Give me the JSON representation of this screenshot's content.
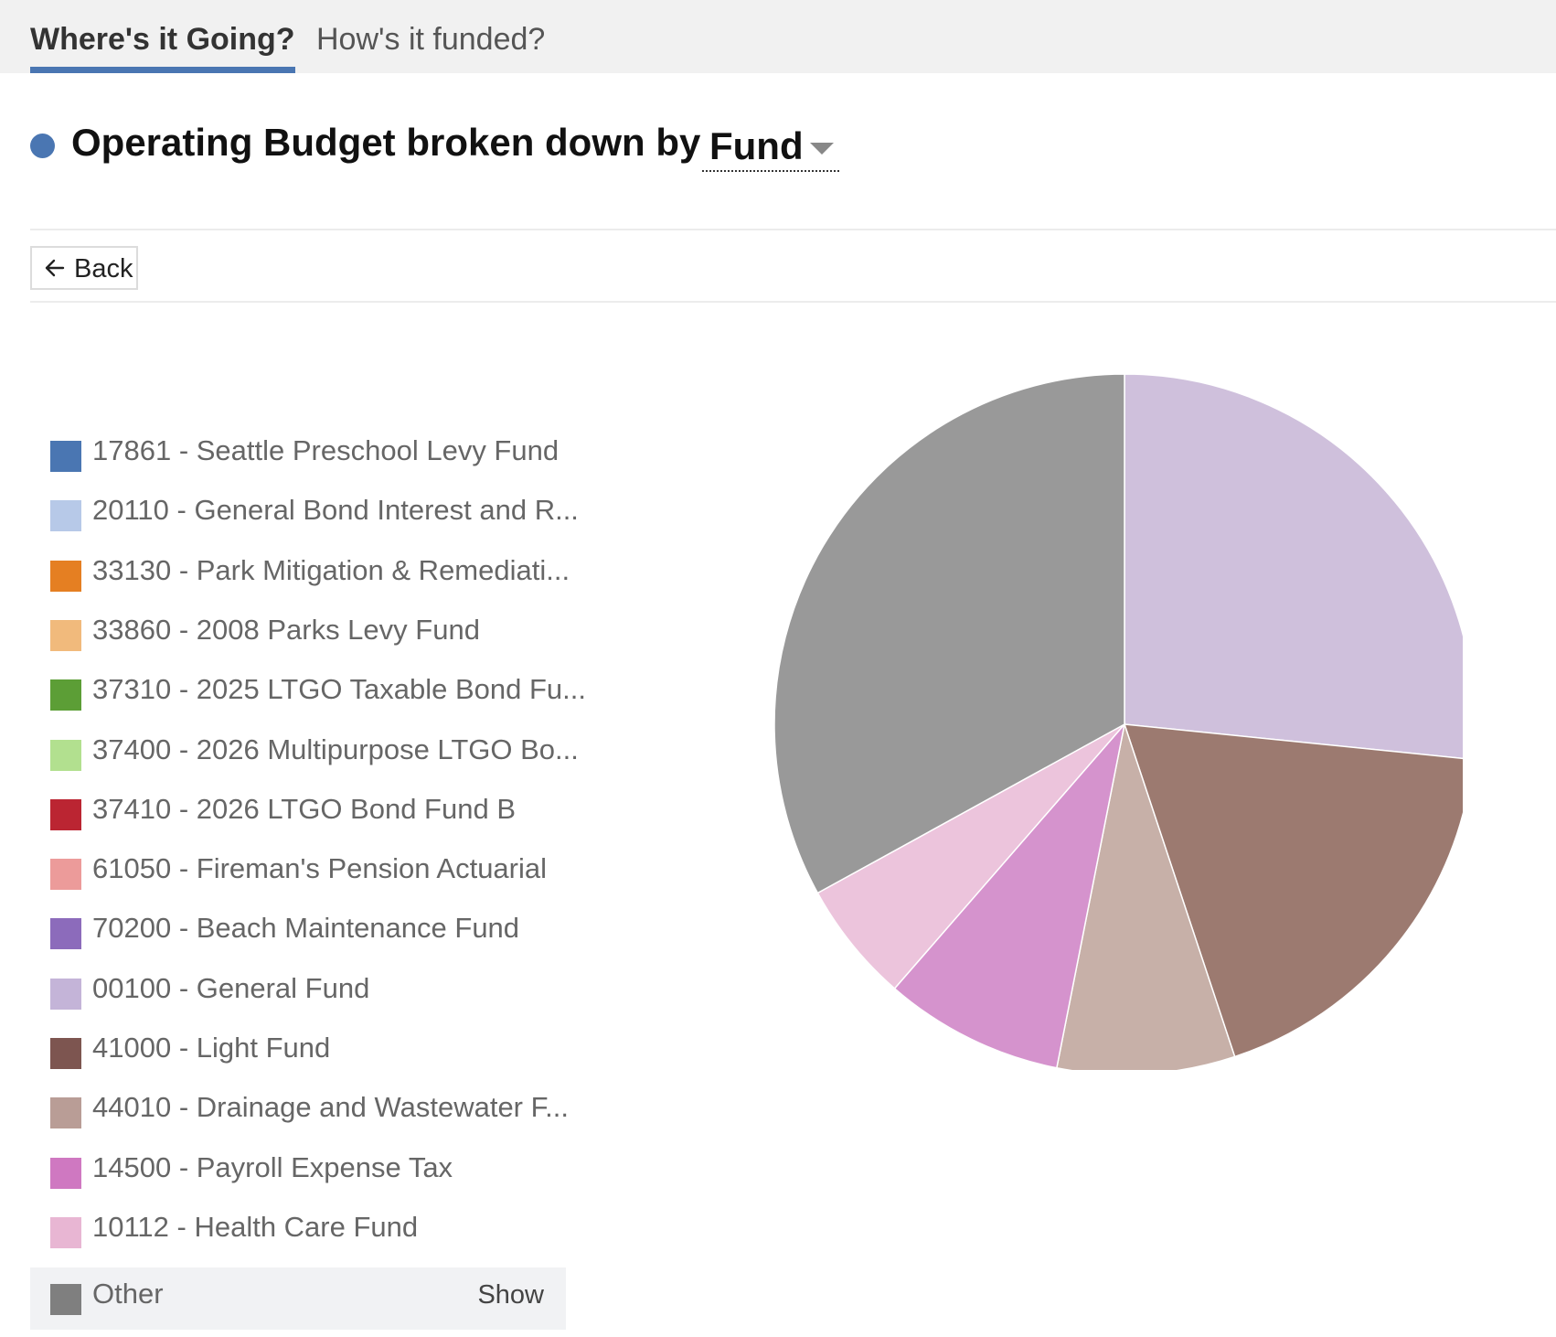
{
  "tabs": [
    {
      "label": "Where's it Going?",
      "active": true
    },
    {
      "label": "How's it funded?",
      "active": false
    }
  ],
  "header": {
    "title": "Operating Budget broken down by",
    "dropdown_value": "Fund",
    "dot_color": "#4a76b2"
  },
  "back_label": "Back",
  "legend": {
    "items": [
      {
        "label": "17861 - Seattle Preschool Levy Fund",
        "color": "#4a76b2"
      },
      {
        "label": "20110 - General Bond Interest and R...",
        "color": "#b7c9e8"
      },
      {
        "label": "33130 - Park Mitigation & Remediati...",
        "color": "#e57f22"
      },
      {
        "label": "33860 - 2008 Parks Levy Fund",
        "color": "#f1ba7c"
      },
      {
        "label": "37310 - 2025 LTGO Taxable Bond Fu...",
        "color": "#5c9e36"
      },
      {
        "label": "37400 - 2026 Multipurpose LTGO Bo...",
        "color": "#b2e08f"
      },
      {
        "label": "37410 - 2026 LTGO Bond Fund B",
        "color": "#bb2532"
      },
      {
        "label": "61050 - Fireman's Pension Actuarial",
        "color": "#ec9b9a"
      },
      {
        "label": "70200 - Beach Maintenance Fund",
        "color": "#8c6bbb"
      },
      {
        "label": "00100 - General Fund",
        "color": "#c4b4d8"
      },
      {
        "label": "41000 - Light Fund",
        "color": "#7d5550"
      },
      {
        "label": "44010 - Drainage and Wastewater F...",
        "color": "#b99d96"
      },
      {
        "label": "14500 - Payroll Expense Tax",
        "color": "#cf78c1"
      },
      {
        "label": "10112 - Health Care Fund",
        "color": "#e8b6d3"
      }
    ],
    "other": {
      "label": "Other",
      "color": "#7f7f7f",
      "show_label": "Show"
    }
  },
  "chart_data": {
    "type": "pie",
    "title": "",
    "start_angle_deg": 0,
    "direction": "clockwise",
    "slices": [
      {
        "label": "00100 - General Fund",
        "value": 26.6,
        "color": "#cfc0dc"
      },
      {
        "label": "41000 - Light Fund",
        "value": 18.3,
        "color": "#9c7a70"
      },
      {
        "label": "44010 - Drainage and Wastewater F...",
        "value": 8.2,
        "color": "#c7b0a8"
      },
      {
        "label": "14500 - Payroll Expense Tax",
        "value": 8.3,
        "color": "#d593cd"
      },
      {
        "label": "10112 - Health Care Fund",
        "value": 5.6,
        "color": "#ecc4dc"
      },
      {
        "label": "Other",
        "value": 33.0,
        "color": "#999999"
      }
    ]
  }
}
